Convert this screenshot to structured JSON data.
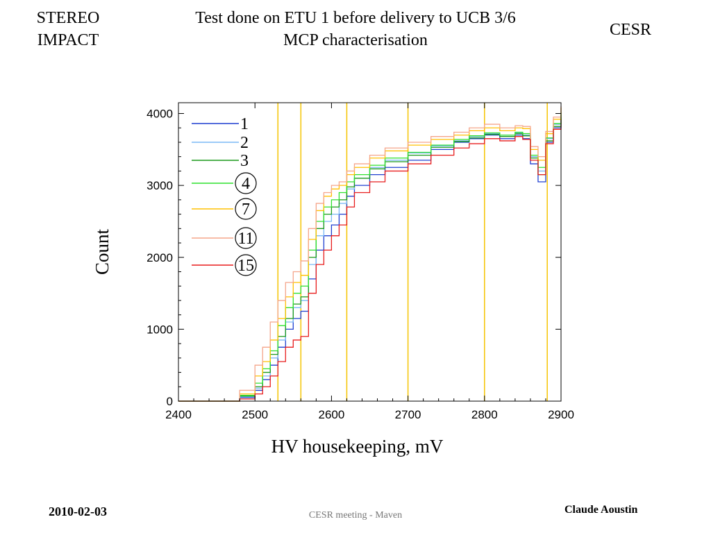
{
  "header": {
    "left_line1": "STEREO",
    "left_line2": "IMPACT",
    "title_line1": "Test done on ETU 1 before delivery to UCB 3/6",
    "title_line2": "MCP characterisation",
    "right": "CESR"
  },
  "footer": {
    "date": "2010-02-03",
    "center": "CESR meeting - Maven",
    "author": "Claude Aoustin"
  },
  "chart_data": {
    "type": "line",
    "xlabel": "HV housekeeping, mV",
    "ylabel": "Count",
    "xlim": [
      2400,
      2900
    ],
    "ylim": [
      0,
      4150
    ],
    "xticks": [
      2400,
      2500,
      2600,
      2700,
      2800,
      2900
    ],
    "yticks": [
      0,
      1000,
      2000,
      3000,
      4000
    ],
    "legend_position": "top-left",
    "vertical_lines": {
      "color": "#f5c400",
      "x": [
        2530,
        2560,
        2620,
        2700,
        2800,
        2882
      ]
    },
    "series": [
      {
        "name": "1",
        "circled": false,
        "color": "#1f3fd0",
        "x": [
          2400,
          2460,
          2480,
          2500,
          2510,
          2520,
          2530,
          2540,
          2550,
          2560,
          2570,
          2580,
          2590,
          2600,
          2610,
          2620,
          2630,
          2650,
          2670,
          2700,
          2730,
          2760,
          2780,
          2800,
          2820,
          2840,
          2850,
          2860,
          2870,
          2880,
          2890,
          2900
        ],
        "y": [
          0,
          0,
          50,
          150,
          300,
          500,
          750,
          1000,
          1150,
          1250,
          1700,
          2100,
          2300,
          2450,
          2600,
          2850,
          3000,
          3150,
          3250,
          3350,
          3500,
          3600,
          3650,
          3700,
          3650,
          3700,
          3650,
          3300,
          3050,
          3600,
          3800,
          3950
        ]
      },
      {
        "name": "2",
        "circled": false,
        "color": "#7ab8f5",
        "x": [
          2400,
          2460,
          2480,
          2500,
          2510,
          2520,
          2530,
          2540,
          2550,
          2560,
          2570,
          2580,
          2590,
          2600,
          2610,
          2620,
          2630,
          2650,
          2670,
          2700,
          2730,
          2760,
          2780,
          2800,
          2820,
          2840,
          2850,
          2860,
          2870,
          2880,
          2890,
          2900
        ],
        "y": [
          0,
          0,
          60,
          180,
          350,
          600,
          850,
          1100,
          1300,
          1400,
          1900,
          2300,
          2500,
          2600,
          2750,
          2950,
          3100,
          3250,
          3350,
          3450,
          3550,
          3620,
          3680,
          3720,
          3700,
          3730,
          3700,
          3400,
          3200,
          3650,
          3850,
          4000
        ]
      },
      {
        "name": "3",
        "circled": false,
        "color": "#1a9a1a",
        "x": [
          2400,
          2460,
          2480,
          2500,
          2510,
          2520,
          2530,
          2540,
          2550,
          2560,
          2570,
          2580,
          2590,
          2600,
          2610,
          2620,
          2630,
          2650,
          2670,
          2700,
          2730,
          2760,
          2780,
          2800,
          2820,
          2840,
          2850,
          2860,
          2870,
          2880,
          2890,
          2900
        ],
        "y": [
          0,
          0,
          70,
          200,
          400,
          650,
          900,
          1150,
          1350,
          1450,
          2000,
          2400,
          2600,
          2700,
          2800,
          2980,
          3100,
          3230,
          3330,
          3420,
          3530,
          3610,
          3660,
          3710,
          3680,
          3720,
          3690,
          3380,
          3150,
          3620,
          3820,
          3980
        ]
      },
      {
        "name": "4",
        "circled": true,
        "color": "#2fe02f",
        "x": [
          2400,
          2460,
          2480,
          2500,
          2510,
          2520,
          2530,
          2540,
          2550,
          2560,
          2570,
          2580,
          2590,
          2600,
          2610,
          2620,
          2630,
          2650,
          2670,
          2700,
          2730,
          2760,
          2780,
          2800,
          2820,
          2840,
          2850,
          2860,
          2870,
          2880,
          2890,
          2900
        ],
        "y": [
          0,
          0,
          80,
          250,
          450,
          700,
          1050,
          1300,
          1500,
          1600,
          2100,
          2500,
          2700,
          2800,
          2900,
          3050,
          3150,
          3280,
          3380,
          3460,
          3560,
          3640,
          3690,
          3730,
          3700,
          3740,
          3720,
          3420,
          3250,
          3660,
          3860,
          4020
        ]
      },
      {
        "name": "7",
        "circled": true,
        "color": "#ffc000",
        "x": [
          2400,
          2460,
          2480,
          2500,
          2510,
          2520,
          2530,
          2540,
          2550,
          2560,
          2570,
          2580,
          2590,
          2600,
          2610,
          2620,
          2630,
          2650,
          2670,
          2700,
          2730,
          2760,
          2780,
          2800,
          2820,
          2840,
          2850,
          2860,
          2870,
          2880,
          2890,
          2900
        ],
        "y": [
          0,
          0,
          100,
          350,
          550,
          850,
          1150,
          1450,
          1650,
          1750,
          2250,
          2650,
          2850,
          2950,
          3000,
          3150,
          3250,
          3380,
          3480,
          3560,
          3640,
          3700,
          3760,
          3800,
          3760,
          3800,
          3790,
          3500,
          3350,
          3720,
          3920,
          4080
        ]
      },
      {
        "name": "11",
        "circled": true,
        "color": "#f5a58a",
        "x": [
          2400,
          2460,
          2480,
          2500,
          2510,
          2520,
          2530,
          2540,
          2550,
          2560,
          2570,
          2580,
          2590,
          2600,
          2610,
          2620,
          2630,
          2650,
          2670,
          2700,
          2730,
          2760,
          2780,
          2800,
          2820,
          2840,
          2850,
          2860,
          2870,
          2880,
          2890,
          2900
        ],
        "y": [
          0,
          0,
          150,
          500,
          750,
          1100,
          1400,
          1650,
          1800,
          1950,
          2400,
          2750,
          2900,
          3000,
          3050,
          3200,
          3300,
          3420,
          3520,
          3600,
          3680,
          3740,
          3800,
          3850,
          3800,
          3830,
          3820,
          3540,
          3400,
          3750,
          3950,
          4100
        ]
      },
      {
        "name": "15",
        "circled": true,
        "color": "#e81c1c",
        "x": [
          2400,
          2460,
          2480,
          2500,
          2510,
          2520,
          2530,
          2540,
          2550,
          2560,
          2570,
          2580,
          2590,
          2600,
          2610,
          2620,
          2630,
          2650,
          2670,
          2700,
          2730,
          2760,
          2780,
          2800,
          2820,
          2840,
          2850,
          2860,
          2870,
          2880,
          2890,
          2900
        ],
        "y": [
          0,
          0,
          30,
          100,
          200,
          350,
          550,
          750,
          850,
          900,
          1500,
          1900,
          2100,
          2300,
          2450,
          2700,
          2900,
          3050,
          3200,
          3300,
          3420,
          3520,
          3580,
          3650,
          3620,
          3680,
          3640,
          3350,
          3150,
          3580,
          3780,
          3920
        ]
      }
    ]
  }
}
